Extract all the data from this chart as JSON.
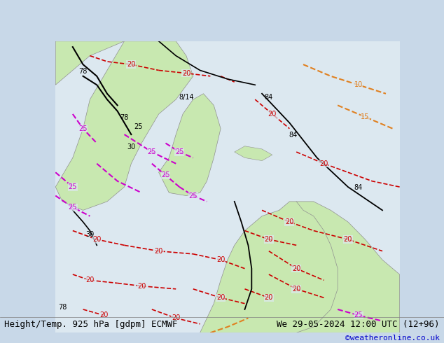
{
  "title_left": "Height/Temp. 925 hPa [gdpm] ECMWF",
  "title_right": "We 29-05-2024 12:00 UTC (12+96)",
  "copyright": "©weatheronline.co.uk",
  "bg_color": "#e8e8e8",
  "land_color_elevated": "#b8e8b0",
  "land_color_flat": "#d0f0c8",
  "water_color": "#e0e8f0",
  "title_fontsize": 9,
  "copyright_fontsize": 8,
  "fig_width": 6.34,
  "fig_height": 4.9,
  "dpi": 100
}
